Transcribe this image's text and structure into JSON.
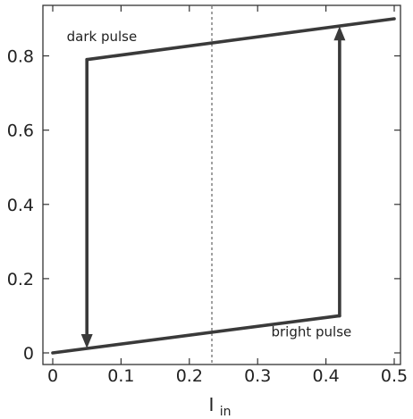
{
  "chart_data": {
    "type": "line",
    "title": "",
    "xlabel": {
      "main": "I",
      "sub": "in"
    },
    "ylabel": "",
    "xlim": [
      0,
      0.5
    ],
    "ylim": [
      0,
      0.9
    ],
    "grid": false,
    "x_ticks": [
      0,
      0.1,
      0.2,
      0.3,
      0.4,
      0.5
    ],
    "y_ticks": [
      0,
      0.2,
      0.4,
      0.6,
      0.8
    ],
    "x_tick_labels": [
      "0",
      "0.1",
      "0.2",
      "0.3",
      "0.4",
      "0.5"
    ],
    "y_tick_labels": [
      "0",
      "0.2",
      "0.4",
      "0.6",
      "0.8"
    ],
    "series": [
      {
        "name": "dark pulse",
        "x": [
          0.05,
          0.5
        ],
        "y": [
          0.79,
          0.9
        ]
      },
      {
        "name": "bright pulse",
        "x": [
          0,
          0.42
        ],
        "y": [
          0,
          0.1
        ]
      }
    ],
    "transitions": [
      {
        "x": 0.05,
        "from": 0.79,
        "to": 0.012,
        "direction": "down"
      },
      {
        "x": 0.42,
        "from": 0.1,
        "to": 0.88,
        "direction": "up"
      }
    ],
    "reference_line": {
      "x": 0.233,
      "style": "dotted"
    },
    "annotations": [
      {
        "text": "dark pulse",
        "x": 0.0205,
        "y": 0.84
      },
      {
        "text": "bright pulse",
        "x": 0.32,
        "y": 0.045
      }
    ]
  }
}
